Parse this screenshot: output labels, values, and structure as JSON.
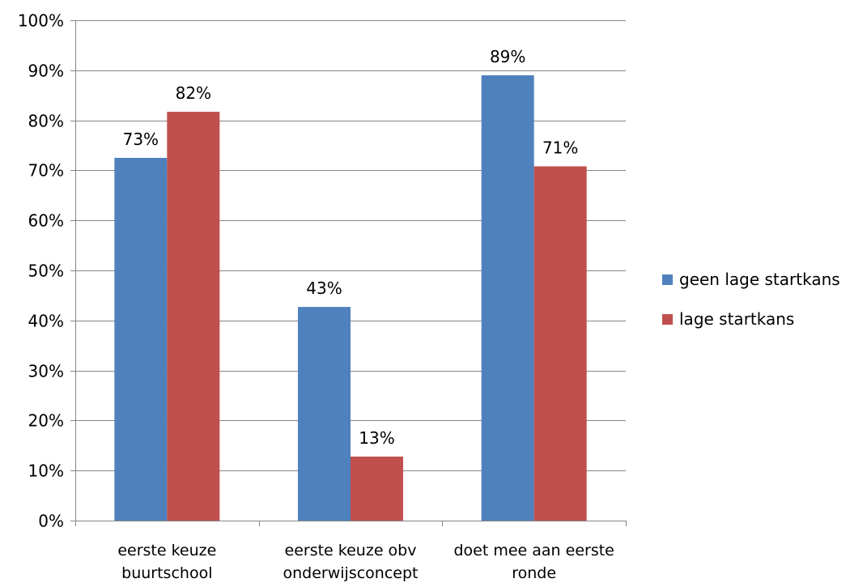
{
  "chart_data": {
    "type": "bar",
    "title": "",
    "xlabel": "",
    "ylabel": "",
    "ylim": [
      0,
      1
    ],
    "yticks": [
      "0%",
      "10%",
      "20%",
      "30%",
      "40%",
      "50%",
      "60%",
      "70%",
      "80%",
      "90%",
      "100%"
    ],
    "grid": true,
    "legend_position": "right",
    "categories": [
      [
        "eerste keuze",
        "buurtschool"
      ],
      [
        "eerste keuze obv",
        "onderwijsconcept"
      ],
      [
        "doet mee aan eerste",
        "ronde"
      ]
    ],
    "series": [
      {
        "name": "geen lage startkans",
        "color": "#4F81BD",
        "values": [
          0.725,
          0.427,
          0.89
        ],
        "labels": [
          "73%",
          "43%",
          "89%"
        ]
      },
      {
        "name": "lage startkans",
        "color": "#C0504D",
        "values": [
          0.817,
          0.128,
          0.708
        ],
        "labels": [
          "82%",
          "13%",
          "71%"
        ]
      }
    ]
  }
}
